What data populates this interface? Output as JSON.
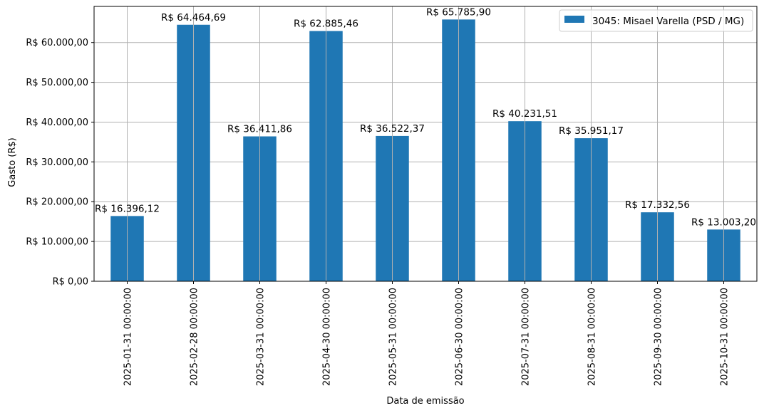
{
  "chart_data": {
    "type": "bar",
    "title": "",
    "xlabel": "Data de emissão",
    "ylabel": "Gasto (R$)",
    "categories": [
      "2025-01-31 00:00:00",
      "2025-02-28 00:00:00",
      "2025-03-31 00:00:00",
      "2025-04-30 00:00:00",
      "2025-05-31 00:00:00",
      "2025-06-30 00:00:00",
      "2025-07-31 00:00:00",
      "2025-08-31 00:00:00",
      "2025-09-30 00:00:00",
      "2025-10-31 00:00:00"
    ],
    "series": [
      {
        "name": "3045: Misael Varella (PSD / MG)",
        "color": "#1f77b4",
        "values": [
          16396.12,
          64464.69,
          36411.86,
          62885.46,
          36522.37,
          65785.9,
          40231.51,
          35951.17,
          17332.56,
          13003.2
        ],
        "data_labels": [
          "R$ 16.396,12",
          "R$ 64.464,69",
          "R$ 36.411,86",
          "R$ 62.885,46",
          "R$ 36.522,37",
          "R$ 65.785,90",
          "R$ 40.231,51",
          "R$ 35.951,17",
          "R$ 17.332,56",
          "R$ 13.003,20"
        ]
      }
    ],
    "ylim": [
      0,
      69075.2
    ],
    "yticks": [
      0,
      10000,
      20000,
      30000,
      40000,
      50000,
      60000
    ],
    "ytick_labels": [
      "R$ 0,00",
      "R$ 10.000,00",
      "R$ 20.000,00",
      "R$ 30.000,00",
      "R$ 40.000,00",
      "R$ 50.000,00",
      "R$ 60.000,00"
    ],
    "grid": true,
    "legend_position": "top-right",
    "grid_color": "#b0b0b0",
    "axis_color": "#000000"
  }
}
